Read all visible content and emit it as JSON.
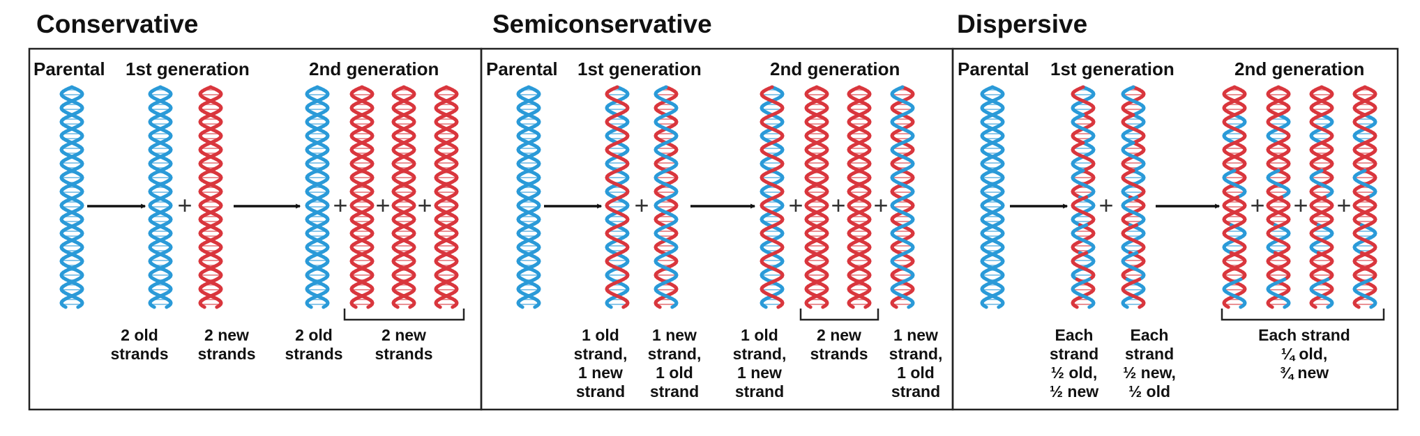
{
  "colors": {
    "old": "#2a9ad8",
    "new": "#d9363d"
  },
  "models": [
    {
      "title": "Conservative",
      "labels": {
        "parental": "Parental",
        "gen1": "1st generation",
        "gen2": "2nd generation"
      },
      "plus": "+",
      "captions": [
        [
          "2 old",
          "strands"
        ],
        [
          "2 new",
          "strands"
        ],
        [
          "2 old",
          "strands"
        ],
        [
          "2 new",
          "strands"
        ]
      ]
    },
    {
      "title": "Semiconservative",
      "labels": {
        "parental": "Parental",
        "gen1": "1st generation",
        "gen2": "2nd generation"
      },
      "plus": "+",
      "captions": [
        [
          "1 old",
          "strand,",
          "1 new",
          "strand"
        ],
        [
          "1 new",
          "strand,",
          "1 old",
          "strand"
        ],
        [
          "1 old",
          "strand,",
          "1 new",
          "strand"
        ],
        [
          "2 new",
          "strands"
        ],
        [
          "1 new",
          "strand,",
          "1 old",
          "strand"
        ]
      ]
    },
    {
      "title": "Dispersive",
      "labels": {
        "parental": "Parental",
        "gen1": "1st generation",
        "gen2": "2nd generation"
      },
      "plus": "+",
      "captions": [
        [
          "Each",
          "strand",
          "½ old,",
          "½ new"
        ],
        [
          "Each",
          "strand",
          "½ new,",
          "½ old"
        ],
        [
          "Each strand",
          "¼ old,",
          "¾ new"
        ]
      ]
    }
  ]
}
